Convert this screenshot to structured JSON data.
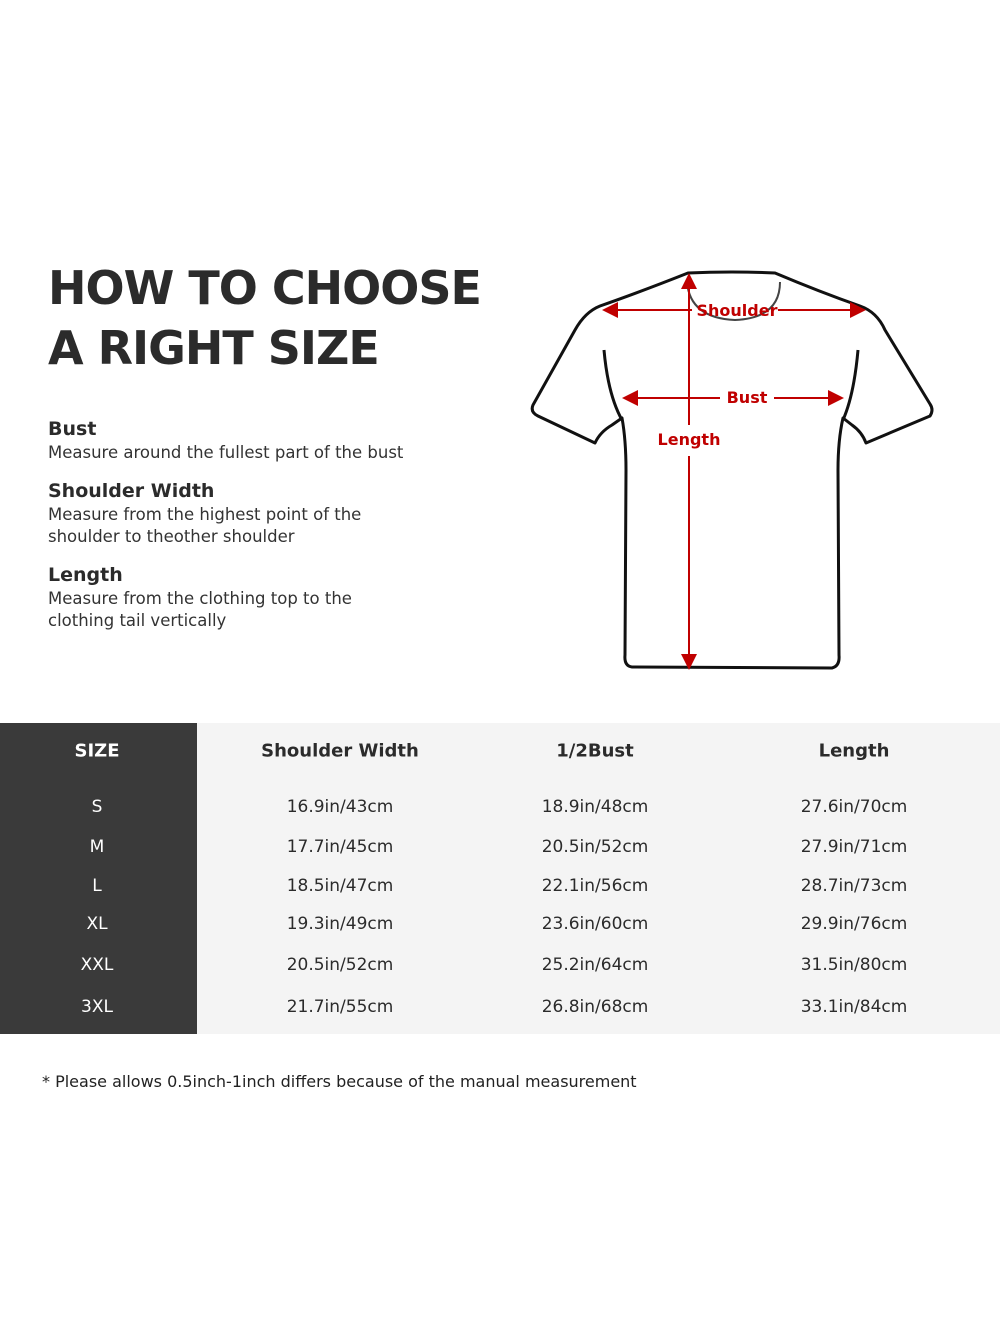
{
  "heading": {
    "line1": "HOW TO CHOOSE",
    "line2": "A RIGHT SIZE"
  },
  "definitions": [
    {
      "term": "Bust",
      "desc_lines": [
        "Measure around the fullest part of the bust"
      ]
    },
    {
      "term": "Shoulder Width",
      "desc_lines": [
        "Measure from the highest point of the",
        "shoulder to theother shoulder"
      ]
    },
    {
      "term": "Length",
      "desc_lines": [
        "Measure from the clothing top to the",
        "clothing tail vertically"
      ]
    }
  ],
  "diagram": {
    "labels": {
      "shoulder": "Shoulder",
      "bust": "Bust",
      "length": "Length"
    },
    "colors": {
      "arrow": "#c00000",
      "outline": "#111111"
    }
  },
  "table": {
    "headers": [
      "SIZE",
      "Shoulder Width",
      "1/2Bust",
      "Length"
    ],
    "rows": [
      [
        "S",
        "16.9in/43cm",
        "18.9in/48cm",
        "27.6in/70cm"
      ],
      [
        "M",
        "17.7in/45cm",
        "20.5in/52cm",
        "27.9in/71cm"
      ],
      [
        "L",
        "18.5in/47cm",
        "22.1in/56cm",
        "28.7in/73cm"
      ],
      [
        "XL",
        "19.3in/49cm",
        "23.6in/60cm",
        "29.9in/76cm"
      ],
      [
        "XXL",
        "20.5in/52cm",
        "25.2in/64cm",
        "31.5in/80cm"
      ],
      [
        "3XL",
        "21.7in/55cm",
        "26.8in/68cm",
        "33.1in/84cm"
      ]
    ],
    "colors": {
      "size_column": "#3a3a3a",
      "body": "#f4f4f4"
    }
  },
  "note": "* Please allows 0.5inch-1inch differs because of the  manual measurement"
}
